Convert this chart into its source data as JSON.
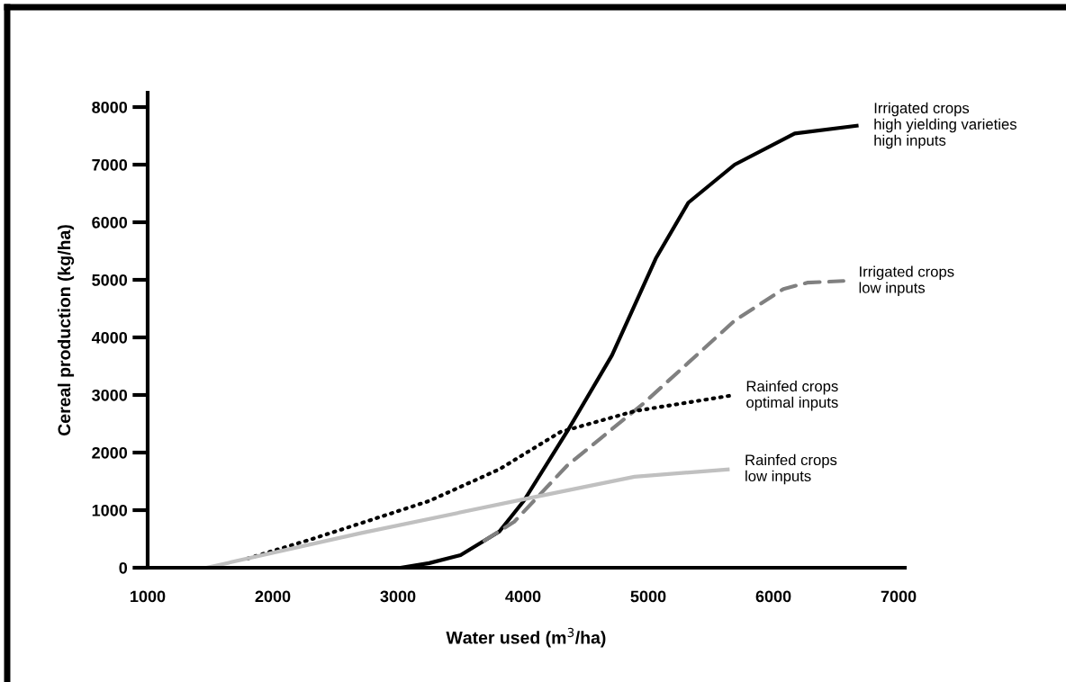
{
  "chart_data": {
    "type": "line",
    "xlabel": "Water used (m$^{3}$/ha)",
    "ylabel": "Cereal production (kg/ha)",
    "xlim": [
      1000,
      7050
    ],
    "ylim": [
      0,
      8250
    ],
    "xticks": [
      1000,
      2000,
      3000,
      4000,
      5000,
      6000,
      7000
    ],
    "yticks": [
      0,
      1000,
      2000,
      3000,
      4000,
      5000,
      6000,
      7000,
      8000
    ],
    "grid": false,
    "marker": "none",
    "series": [
      {
        "name": "Irrigated crops\nhigh yielding varieties\nhigh inputs",
        "color": "#000000",
        "line_style": "solid",
        "x": [
          3020,
          3250,
          3500,
          3810,
          4005,
          4350,
          4710,
          5060,
          5320,
          5690,
          6170,
          6680
        ],
        "values": [
          0,
          80,
          220,
          630,
          1160,
          2360,
          3690,
          5370,
          6340,
          7000,
          7540,
          7680
        ]
      },
      {
        "name": "Irrigated crops\nlow inputs",
        "color": "#808080",
        "line_style": "dashed",
        "x": [
          3690,
          3930,
          4350,
          4960,
          5690,
          6080,
          6270,
          6560
        ],
        "values": [
          470,
          800,
          1770,
          2850,
          4290,
          4840,
          4950,
          4980
        ]
      },
      {
        "name": "Rainfed crops\noptimal inputs",
        "color": "#000000",
        "line_style": "dotted",
        "x": [
          1800,
          2300,
          2700,
          3250,
          3810,
          4300,
          4890,
          5660
        ],
        "values": [
          160,
          490,
          770,
          1160,
          1710,
          2360,
          2720,
          2990
        ]
      },
      {
        "name": "Rainfed crops\nlow inputs",
        "color": "#c0c0c0",
        "line_style": "solid",
        "x": [
          1470,
          2700,
          4005,
          4890,
          5650
        ],
        "values": [
          0,
          600,
          1190,
          1580,
          1710
        ]
      }
    ]
  }
}
